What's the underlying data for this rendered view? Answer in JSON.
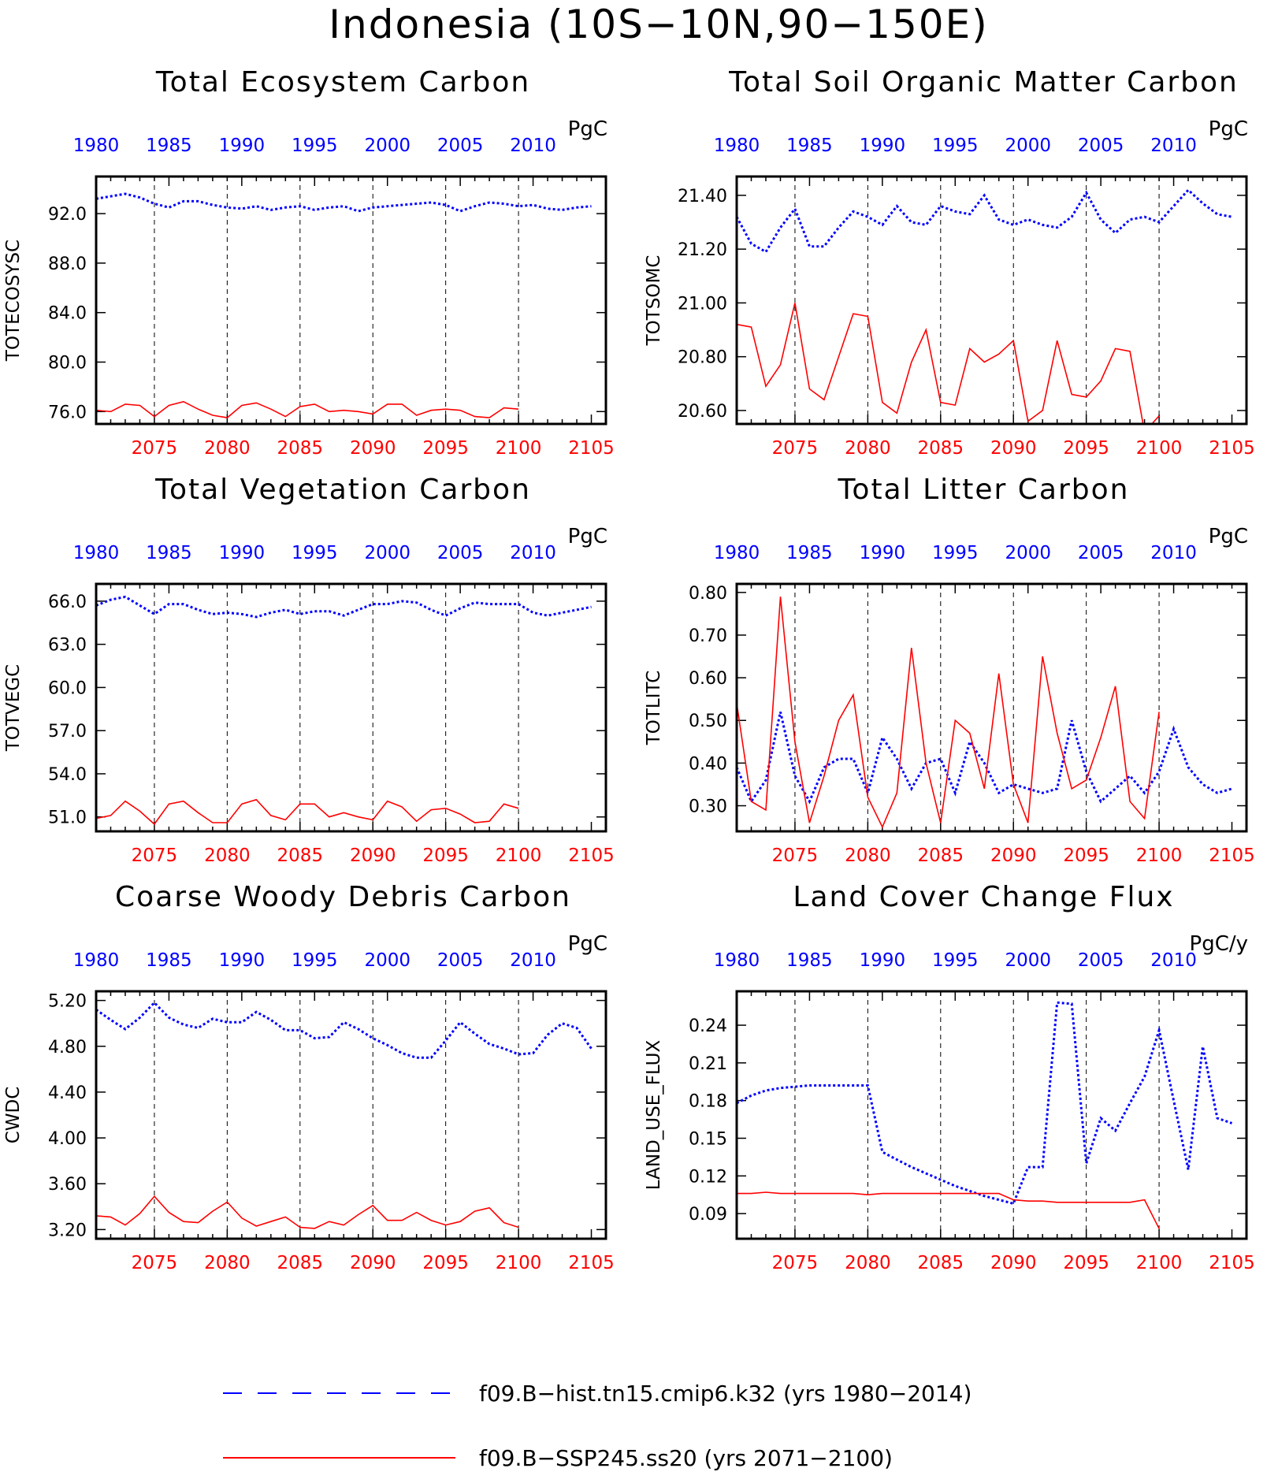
{
  "main_title": "Indonesia (10S−10N,90−150E)",
  "colors": {
    "hist": "#0000ff",
    "ssp": "#ff0000",
    "axis": "#000000",
    "refline": "#000000"
  },
  "legend": [
    {
      "label": "f09.B−hist.tn15.cmip6.k32 (yrs 1980−2014)",
      "color": "#0000ff",
      "style": "dashed"
    },
    {
      "label": "f09.B−SSP245.ss20 (yrs 2071−2100)",
      "color": "#ff0000",
      "style": "solid"
    }
  ],
  "chart_data": [
    {
      "type": "line",
      "title": "Total Ecosystem Carbon",
      "units": "PgC",
      "ylabel": "TOTECOSYSC",
      "ylim": [
        75,
        95
      ],
      "yticks": [
        "76.0",
        "80.0",
        "84.0",
        "88.0",
        "92.0"
      ],
      "x_top_ticks": [
        "1980",
        "1985",
        "1990",
        "1995",
        "2000",
        "2005",
        "2010"
      ],
      "x_bottom_ticks": [
        "2075",
        "2080",
        "2085",
        "2090",
        "2095",
        "2100",
        "2105"
      ],
      "series": [
        {
          "name": "f09.B−hist.tn15.cmip6.k32 (yrs 1980−2014)",
          "x": [
            1980,
            1981,
            1982,
            1983,
            1984,
            1985,
            1986,
            1987,
            1988,
            1989,
            1990,
            1991,
            1992,
            1993,
            1994,
            1995,
            1996,
            1997,
            1998,
            1999,
            2000,
            2001,
            2002,
            2003,
            2004,
            2005,
            2006,
            2007,
            2008,
            2009,
            2010,
            2011,
            2012,
            2013,
            2014
          ],
          "values": [
            93.2,
            93.4,
            93.6,
            93.3,
            92.8,
            92.5,
            93.0,
            93.0,
            92.7,
            92.5,
            92.4,
            92.6,
            92.3,
            92.5,
            92.6,
            92.3,
            92.5,
            92.6,
            92.2,
            92.5,
            92.6,
            92.7,
            92.8,
            92.9,
            92.7,
            92.2,
            92.6,
            92.9,
            92.8,
            92.6,
            92.7,
            92.4,
            92.3,
            92.5,
            92.6
          ]
        },
        {
          "name": "f09.B−SSP245.ss20 (yrs 2071−2100)",
          "x": [
            2071,
            2072,
            2073,
            2074,
            2075,
            2076,
            2077,
            2078,
            2079,
            2080,
            2081,
            2082,
            2083,
            2084,
            2085,
            2086,
            2087,
            2088,
            2089,
            2090,
            2091,
            2092,
            2093,
            2094,
            2095,
            2096,
            2097,
            2098,
            2099,
            2100
          ],
          "values": [
            76.1,
            76.0,
            76.6,
            76.5,
            75.6,
            76.5,
            76.8,
            76.2,
            75.7,
            75.5,
            76.5,
            76.7,
            76.2,
            75.6,
            76.4,
            76.6,
            76.0,
            76.1,
            76.0,
            75.8,
            76.6,
            76.6,
            75.7,
            76.1,
            76.2,
            76.1,
            75.6,
            75.5,
            76.3,
            76.2
          ]
        }
      ]
    },
    {
      "type": "line",
      "title": "Total Soil Organic Matter Carbon",
      "units": "PgC",
      "ylabel": "TOTSOMC",
      "ylim": [
        20.55,
        21.47
      ],
      "yticks": [
        "20.60",
        "20.80",
        "21.00",
        "21.20",
        "21.40"
      ],
      "x_top_ticks": [
        "1980",
        "1985",
        "1990",
        "1995",
        "2000",
        "2005",
        "2010"
      ],
      "x_bottom_ticks": [
        "2075",
        "2080",
        "2085",
        "2090",
        "2095",
        "2100",
        "2105"
      ],
      "series": [
        {
          "name": "f09.B−hist.tn15.cmip6.k32 (yrs 1980−2014)",
          "x": [
            1980,
            1981,
            1982,
            1983,
            1984,
            1985,
            1986,
            1987,
            1988,
            1989,
            1990,
            1991,
            1992,
            1993,
            1994,
            1995,
            1996,
            1997,
            1998,
            1999,
            2000,
            2001,
            2002,
            2003,
            2004,
            2005,
            2006,
            2007,
            2008,
            2009,
            2010,
            2011,
            2012,
            2013,
            2014
          ],
          "values": [
            21.32,
            21.22,
            21.19,
            21.28,
            21.35,
            21.21,
            21.21,
            21.28,
            21.34,
            21.32,
            21.29,
            21.36,
            21.3,
            21.29,
            21.36,
            21.34,
            21.33,
            21.4,
            21.31,
            21.29,
            21.31,
            21.29,
            21.28,
            21.32,
            21.41,
            21.31,
            21.26,
            21.31,
            21.32,
            21.3,
            21.36,
            21.42,
            21.37,
            21.33,
            21.32
          ]
        },
        {
          "name": "f09.B−SSP245.ss20 (yrs 2071−2100)",
          "x": [
            2071,
            2072,
            2073,
            2074,
            2075,
            2076,
            2077,
            2078,
            2079,
            2080,
            2081,
            2082,
            2083,
            2084,
            2085,
            2086,
            2087,
            2088,
            2089,
            2090,
            2091,
            2092,
            2093,
            2094,
            2095,
            2096,
            2097,
            2098,
            2099,
            2100
          ],
          "values": [
            20.92,
            20.91,
            20.69,
            20.77,
            21.0,
            20.68,
            20.64,
            20.8,
            20.96,
            20.95,
            20.63,
            20.59,
            20.78,
            20.9,
            20.63,
            20.62,
            20.83,
            20.78,
            20.81,
            20.86,
            20.56,
            20.6,
            20.86,
            20.66,
            20.65,
            20.71,
            20.83,
            20.82,
            20.52,
            20.58
          ]
        }
      ]
    },
    {
      "type": "line",
      "title": "Total Vegetation Carbon",
      "units": "PgC",
      "ylabel": "TOTVEGC",
      "ylim": [
        50.0,
        67.2
      ],
      "yticks": [
        "51.0",
        "54.0",
        "57.0",
        "60.0",
        "63.0",
        "66.0"
      ],
      "x_top_ticks": [
        "1980",
        "1985",
        "1990",
        "1995",
        "2000",
        "2005",
        "2010"
      ],
      "x_bottom_ticks": [
        "2075",
        "2080",
        "2085",
        "2090",
        "2095",
        "2100",
        "2105"
      ],
      "series": [
        {
          "name": "f09.B−hist.tn15.cmip6.k32 (yrs 1980−2014)",
          "x": [
            1980,
            1981,
            1982,
            1983,
            1984,
            1985,
            1986,
            1987,
            1988,
            1989,
            1990,
            1991,
            1992,
            1993,
            1994,
            1995,
            1996,
            1997,
            1998,
            1999,
            2000,
            2001,
            2002,
            2003,
            2004,
            2005,
            2006,
            2007,
            2008,
            2009,
            2010,
            2011,
            2012,
            2013,
            2014
          ],
          "values": [
            65.7,
            66.1,
            66.3,
            65.7,
            65.1,
            65.8,
            65.8,
            65.4,
            65.1,
            65.2,
            65.1,
            64.9,
            65.2,
            65.4,
            65.1,
            65.3,
            65.3,
            65.0,
            65.4,
            65.8,
            65.8,
            66.0,
            65.9,
            65.4,
            65.0,
            65.5,
            65.9,
            65.8,
            65.8,
            65.8,
            65.2,
            65.0,
            65.2,
            65.4,
            65.6
          ]
        },
        {
          "name": "f09.B−SSP245.ss20 (yrs 2071−2100)",
          "x": [
            2071,
            2072,
            2073,
            2074,
            2075,
            2076,
            2077,
            2078,
            2079,
            2080,
            2081,
            2082,
            2083,
            2084,
            2085,
            2086,
            2087,
            2088,
            2089,
            2090,
            2091,
            2092,
            2093,
            2094,
            2095,
            2096,
            2097,
            2098,
            2099,
            2100
          ],
          "values": [
            50.9,
            51.1,
            52.1,
            51.4,
            50.5,
            51.9,
            52.1,
            51.3,
            50.6,
            50.6,
            51.9,
            52.2,
            51.1,
            50.8,
            51.9,
            51.9,
            51.0,
            51.3,
            51.0,
            50.8,
            52.1,
            51.7,
            50.7,
            51.5,
            51.6,
            51.2,
            50.6,
            50.7,
            51.9,
            51.6
          ]
        }
      ]
    },
    {
      "type": "line",
      "title": "Total Litter Carbon",
      "units": "PgC",
      "ylabel": "TOTLITC",
      "ylim": [
        0.24,
        0.82
      ],
      "yticks": [
        "0.30",
        "0.40",
        "0.50",
        "0.60",
        "0.70",
        "0.80"
      ],
      "x_top_ticks": [
        "1980",
        "1985",
        "1990",
        "1995",
        "2000",
        "2005",
        "2010"
      ],
      "x_bottom_ticks": [
        "2075",
        "2080",
        "2085",
        "2090",
        "2095",
        "2100",
        "2105"
      ],
      "series": [
        {
          "name": "f09.B−hist.tn15.cmip6.k32 (yrs 1980−2014)",
          "x": [
            1980,
            1981,
            1982,
            1983,
            1984,
            1985,
            1986,
            1987,
            1988,
            1989,
            1990,
            1991,
            1992,
            1993,
            1994,
            1995,
            1996,
            1997,
            1998,
            1999,
            2000,
            2001,
            2002,
            2003,
            2004,
            2005,
            2006,
            2007,
            2008,
            2009,
            2010,
            2011,
            2012,
            2013,
            2014
          ],
          "values": [
            0.39,
            0.31,
            0.36,
            0.52,
            0.37,
            0.31,
            0.39,
            0.41,
            0.41,
            0.33,
            0.46,
            0.41,
            0.34,
            0.4,
            0.41,
            0.33,
            0.45,
            0.4,
            0.33,
            0.35,
            0.34,
            0.33,
            0.34,
            0.5,
            0.38,
            0.31,
            0.34,
            0.37,
            0.33,
            0.38,
            0.48,
            0.39,
            0.35,
            0.33,
            0.34
          ]
        },
        {
          "name": "f09.B−SSP245.ss20 (yrs 2071−2100)",
          "x": [
            2071,
            2072,
            2073,
            2074,
            2075,
            2076,
            2077,
            2078,
            2079,
            2080,
            2081,
            2082,
            2083,
            2084,
            2085,
            2086,
            2087,
            2088,
            2089,
            2090,
            2091,
            2092,
            2093,
            2094,
            2095,
            2096,
            2097,
            2098,
            2099,
            2100
          ],
          "values": [
            0.54,
            0.31,
            0.29,
            0.79,
            0.45,
            0.26,
            0.37,
            0.5,
            0.56,
            0.32,
            0.25,
            0.33,
            0.67,
            0.4,
            0.26,
            0.5,
            0.47,
            0.34,
            0.61,
            0.35,
            0.26,
            0.65,
            0.47,
            0.34,
            0.36,
            0.46,
            0.58,
            0.31,
            0.27,
            0.52
          ]
        }
      ]
    },
    {
      "type": "line",
      "title": "Coarse Woody Debris Carbon",
      "units": "PgC",
      "ylabel": "CWDC",
      "ylim": [
        3.12,
        5.28
      ],
      "yticks": [
        "3.20",
        "3.60",
        "4.00",
        "4.40",
        "4.80",
        "5.20"
      ],
      "x_top_ticks": [
        "1980",
        "1985",
        "1990",
        "1995",
        "2000",
        "2005",
        "2010"
      ],
      "x_bottom_ticks": [
        "2075",
        "2080",
        "2085",
        "2090",
        "2095",
        "2100",
        "2105"
      ],
      "series": [
        {
          "name": "f09.B−hist.tn15.cmip6.k32 (yrs 1980−2014)",
          "x": [
            1980,
            1981,
            1982,
            1983,
            1984,
            1985,
            1986,
            1987,
            1988,
            1989,
            1990,
            1991,
            1992,
            1993,
            1994,
            1995,
            1996,
            1997,
            1998,
            1999,
            2000,
            2001,
            2002,
            2003,
            2004,
            2005,
            2006,
            2007,
            2008,
            2009,
            2010,
            2011,
            2012,
            2013,
            2014
          ],
          "values": [
            5.12,
            5.03,
            4.95,
            5.05,
            5.18,
            5.05,
            4.99,
            4.96,
            5.04,
            5.01,
            5.01,
            5.1,
            5.03,
            4.94,
            4.94,
            4.87,
            4.88,
            5.01,
            4.95,
            4.87,
            4.81,
            4.74,
            4.7,
            4.7,
            4.85,
            5.01,
            4.91,
            4.82,
            4.78,
            4.73,
            4.74,
            4.9,
            5.0,
            4.96,
            4.78
          ]
        },
        {
          "name": "f09.B−SSP245.ss20 (yrs 2071−2100)",
          "x": [
            2071,
            2072,
            2073,
            2074,
            2075,
            2076,
            2077,
            2078,
            2079,
            2080,
            2081,
            2082,
            2083,
            2084,
            2085,
            2086,
            2087,
            2088,
            2089,
            2090,
            2091,
            2092,
            2093,
            2094,
            2095,
            2096,
            2097,
            2098,
            2099,
            2100
          ],
          "values": [
            3.32,
            3.31,
            3.24,
            3.34,
            3.49,
            3.35,
            3.27,
            3.26,
            3.36,
            3.44,
            3.3,
            3.23,
            3.27,
            3.31,
            3.22,
            3.21,
            3.27,
            3.24,
            3.33,
            3.41,
            3.28,
            3.28,
            3.35,
            3.28,
            3.24,
            3.27,
            3.36,
            3.39,
            3.26,
            3.22
          ]
        }
      ]
    },
    {
      "type": "line",
      "title": "Land Cover Change Flux",
      "units": "PgC/y",
      "ylabel": "LAND_USE_FLUX",
      "ylim": [
        0.07,
        0.267
      ],
      "yticks": [
        "0.09",
        "0.12",
        "0.15",
        "0.18",
        "0.21",
        "0.24"
      ],
      "x_top_ticks": [
        "1980",
        "1985",
        "1990",
        "1995",
        "2000",
        "2005",
        "2010"
      ],
      "x_bottom_ticks": [
        "2075",
        "2080",
        "2085",
        "2090",
        "2095",
        "2100",
        "2105"
      ],
      "series": [
        {
          "name": "f09.B−hist.tn15.cmip6.k32 (yrs 1980−2014)",
          "x": [
            1980,
            1981,
            1982,
            1983,
            1984,
            1985,
            1986,
            1987,
            1988,
            1989,
            1990,
            1991,
            1992,
            1993,
            1994,
            1995,
            1996,
            1997,
            1998,
            1999,
            2000,
            2001,
            2002,
            2003,
            2004,
            2005,
            2006,
            2007,
            2008,
            2009,
            2010,
            2011,
            2012,
            2013,
            2014
          ],
          "values": [
            0.178,
            0.184,
            0.188,
            0.19,
            0.191,
            0.192,
            0.192,
            0.192,
            0.192,
            0.192,
            0.139,
            0.133,
            0.127,
            0.122,
            0.117,
            0.112,
            0.108,
            0.104,
            0.101,
            0.098,
            0.127,
            0.127,
            0.258,
            0.257,
            0.13,
            0.166,
            0.156,
            0.178,
            0.199,
            0.236,
            0.18,
            0.125,
            0.223,
            0.166,
            0.162
          ]
        },
        {
          "name": "f09.B−SSP245.ss20 (yrs 2071−2100)",
          "x": [
            2071,
            2072,
            2073,
            2074,
            2075,
            2076,
            2077,
            2078,
            2079,
            2080,
            2081,
            2082,
            2083,
            2084,
            2085,
            2086,
            2087,
            2088,
            2089,
            2090,
            2091,
            2092,
            2093,
            2094,
            2095,
            2096,
            2097,
            2098,
            2099,
            2100
          ],
          "values": [
            0.106,
            0.106,
            0.107,
            0.106,
            0.106,
            0.106,
            0.106,
            0.106,
            0.106,
            0.105,
            0.106,
            0.106,
            0.106,
            0.106,
            0.106,
            0.106,
            0.106,
            0.106,
            0.106,
            0.101,
            0.1,
            0.1,
            0.099,
            0.099,
            0.099,
            0.099,
            0.099,
            0.099,
            0.101,
            0.078
          ]
        }
      ]
    }
  ]
}
